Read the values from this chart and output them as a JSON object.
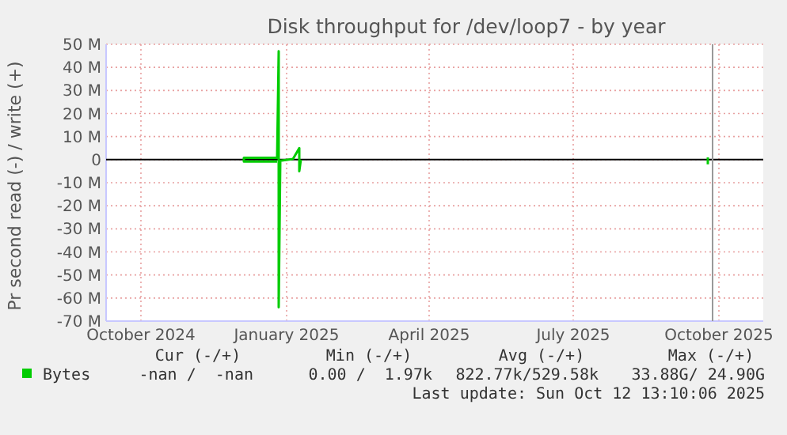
{
  "chart_data": {
    "type": "line",
    "title": "Disk throughput for /dev/loop7 - by year",
    "ylabel": "Pr second read (-) / write (+)",
    "xlim": [
      "2024-09-24",
      "2025-11-13"
    ],
    "xticks": [
      {
        "value": "2024-10-16",
        "label": "October 2024"
      },
      {
        "value": "2025-01-16",
        "label": "January 2025"
      },
      {
        "value": "2025-04-16",
        "label": "April 2025"
      },
      {
        "value": "2025-07-16",
        "label": "July 2025"
      },
      {
        "value": "2025-10-16",
        "label": "October 2025"
      }
    ],
    "ylim": [
      -70000000,
      50000000
    ],
    "yticks": [
      {
        "value": 50000000,
        "label": "50 M"
      },
      {
        "value": 40000000,
        "label": "40 M"
      },
      {
        "value": 30000000,
        "label": "30 M"
      },
      {
        "value": 20000000,
        "label": "20 M"
      },
      {
        "value": 10000000,
        "label": "10 M"
      },
      0,
      {
        "value": -10000000,
        "label": "-10 M"
      },
      {
        "value": -20000000,
        "label": "-20 M"
      },
      {
        "value": -30000000,
        "label": "-30 M"
      },
      {
        "value": -40000000,
        "label": "-40 M"
      },
      {
        "value": -50000000,
        "label": "-50 M"
      },
      {
        "value": -60000000,
        "label": "-60 M"
      },
      {
        "value": -70000000,
        "label": "-70 M"
      }
    ],
    "grid": true,
    "legend": "bottom left",
    "marker": "none",
    "line_style": "solid",
    "series": [
      {
        "name": "Bytes",
        "color": "#00cc00",
        "x": [
          "2025-01-10",
          "2024-12-20",
          "2024-12-20",
          "2025-01-10",
          "2025-01-11",
          "2025-01-11",
          "2025-01-12",
          "2025-01-20",
          "2025-01-24",
          "2025-01-24",
          "2025-01-25",
          "2025-02-01",
          "2025-10-09",
          "2025-10-09"
        ],
        "values": [
          -800000,
          -800000,
          800000,
          800000,
          47000000,
          -64000000,
          -500000,
          300000,
          5000000,
          -5000000,
          0,
          null,
          1000000,
          -2000000
        ]
      }
    ],
    "ref_lines": [
      {
        "axis": "y",
        "value": 0,
        "color": "#000000"
      },
      {
        "axis": "x",
        "value": "2025-10-12",
        "color": "#999999"
      }
    ],
    "annotations": [
      "Cur (-/+)",
      "Min (-/+)",
      "Avg (-/+)",
      "Max (-/+)",
      "-nan /  -nan",
      "0.00 /  1.97k",
      "822.77k/529.58k",
      "33.88G/ 24.90G",
      "Last update: Sun Oct 12 13:10:06 2025"
    ]
  }
}
